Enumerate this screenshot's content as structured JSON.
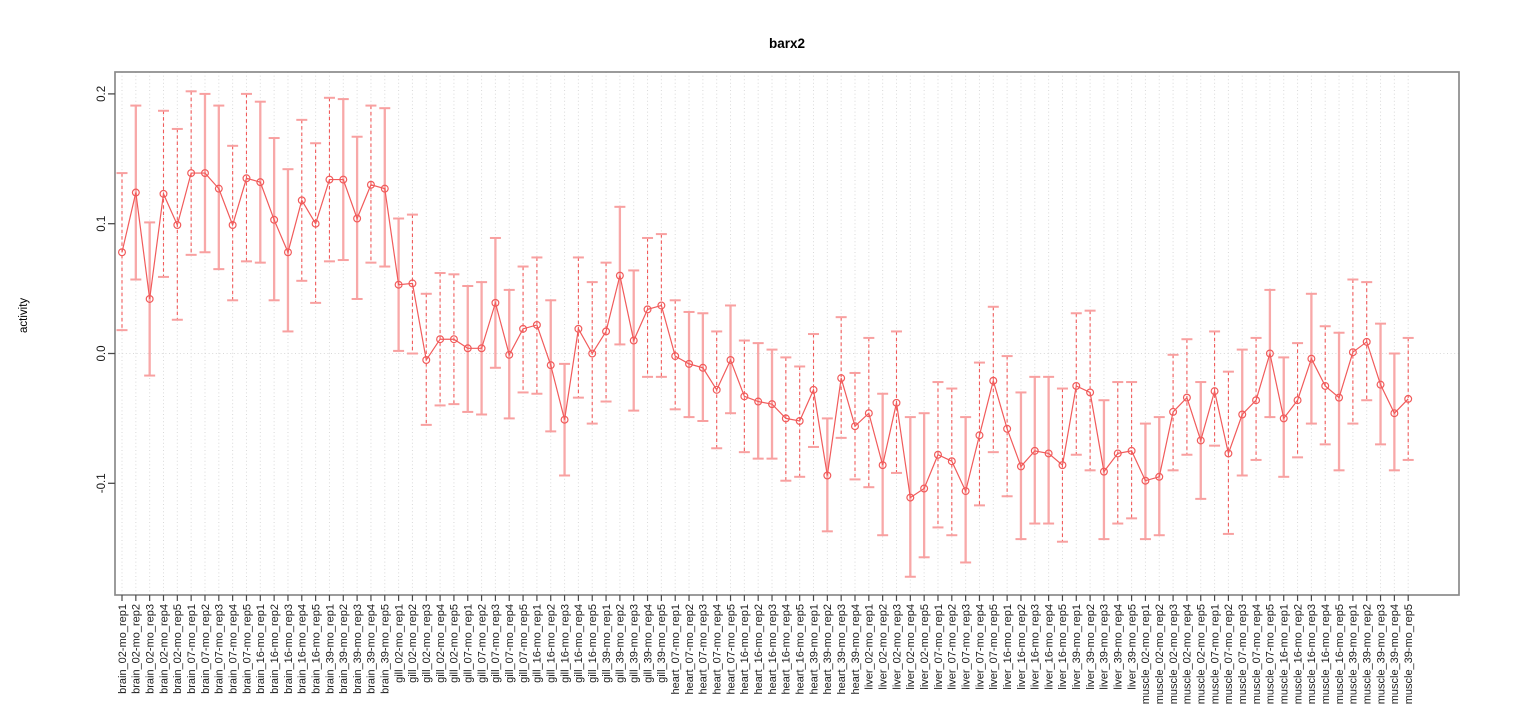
{
  "chart_data": {
    "type": "scatter",
    "title": "barx2",
    "ylabel": "activity",
    "xlabel": "",
    "yticks": [
      0.2,
      0.1,
      0.0,
      -0.1
    ],
    "ytick_labels": [
      "0.2",
      "0.1",
      "0.0",
      "-0.1"
    ],
    "ylim": [
      -0.186,
      0.217
    ],
    "legend": "none",
    "grid": {
      "vertical": "dotted line at every category",
      "horizontal": "dotted line at y=0"
    },
    "marker": "open-circle",
    "line_style": "solid segments connecting consecutive points, error bars per point",
    "colors": {
      "point": "#f15b5b",
      "line": "#f15b5b",
      "stem_dashed": "#f15b5b",
      "stem_light": "#f8a8a8",
      "cap": "#f8a0a0",
      "grid": "#d9d9d9",
      "frame": "#8a8a8a",
      "tick": "#4a4a4a",
      "text": "#1a1a1a"
    },
    "points": [
      {
        "label": "brain_02-mo_rep1",
        "value": 0.078,
        "lo": 0.018,
        "hi": 0.139,
        "style": "dashed"
      },
      {
        "label": "brain_02-mo_rep2",
        "value": 0.124,
        "lo": 0.057,
        "hi": 0.191,
        "style": "light"
      },
      {
        "label": "brain_02-mo_rep3",
        "value": 0.042,
        "lo": -0.017,
        "hi": 0.101,
        "style": "light"
      },
      {
        "label": "brain_02-mo_rep4",
        "value": 0.123,
        "lo": 0.059,
        "hi": 0.187,
        "style": "dashed"
      },
      {
        "label": "brain_02-mo_rep5",
        "value": 0.099,
        "lo": 0.026,
        "hi": 0.173,
        "style": "dashed"
      },
      {
        "label": "brain_07-mo_rep1",
        "value": 0.139,
        "lo": 0.076,
        "hi": 0.202,
        "style": "dashed"
      },
      {
        "label": "brain_07-mo_rep2",
        "value": 0.139,
        "lo": 0.078,
        "hi": 0.2,
        "style": "light"
      },
      {
        "label": "brain_07-mo_rep3",
        "value": 0.127,
        "lo": 0.065,
        "hi": 0.191,
        "style": "light"
      },
      {
        "label": "brain_07-mo_rep4",
        "value": 0.099,
        "lo": 0.041,
        "hi": 0.16,
        "style": "dashed"
      },
      {
        "label": "brain_07-mo_rep5",
        "value": 0.135,
        "lo": 0.071,
        "hi": 0.2,
        "style": "dashed"
      },
      {
        "label": "brain_16-mo_rep1",
        "value": 0.132,
        "lo": 0.07,
        "hi": 0.194,
        "style": "light"
      },
      {
        "label": "brain_16-mo_rep2",
        "value": 0.103,
        "lo": 0.041,
        "hi": 0.166,
        "style": "light"
      },
      {
        "label": "brain_16-mo_rep3",
        "value": 0.078,
        "lo": 0.017,
        "hi": 0.142,
        "style": "light"
      },
      {
        "label": "brain_16-mo_rep4",
        "value": 0.118,
        "lo": 0.056,
        "hi": 0.18,
        "style": "dashed"
      },
      {
        "label": "brain_16-mo_rep5",
        "value": 0.1,
        "lo": 0.039,
        "hi": 0.162,
        "style": "dashed"
      },
      {
        "label": "brain_39-mo_rep1",
        "value": 0.134,
        "lo": 0.071,
        "hi": 0.197,
        "style": "dashed"
      },
      {
        "label": "brain_39-mo_rep2",
        "value": 0.134,
        "lo": 0.072,
        "hi": 0.196,
        "style": "light"
      },
      {
        "label": "brain_39-mo_rep3",
        "value": 0.104,
        "lo": 0.042,
        "hi": 0.167,
        "style": "light"
      },
      {
        "label": "brain_39-mo_rep4",
        "value": 0.13,
        "lo": 0.07,
        "hi": 0.191,
        "style": "dashed"
      },
      {
        "label": "brain_39-mo_rep5",
        "value": 0.127,
        "lo": 0.067,
        "hi": 0.189,
        "style": "light"
      },
      {
        "label": "gill_02-mo_rep1",
        "value": 0.053,
        "lo": 0.002,
        "hi": 0.104,
        "style": "light"
      },
      {
        "label": "gill_02-mo_rep2",
        "value": 0.054,
        "lo": 0.0,
        "hi": 0.107,
        "style": "dashed"
      },
      {
        "label": "gill_02-mo_rep3",
        "value": -0.005,
        "lo": -0.055,
        "hi": 0.046,
        "style": "dashed"
      },
      {
        "label": "gill_02-mo_rep4",
        "value": 0.011,
        "lo": -0.04,
        "hi": 0.062,
        "style": "dashed"
      },
      {
        "label": "gill_02-mo_rep5",
        "value": 0.011,
        "lo": -0.039,
        "hi": 0.061,
        "style": "dashed"
      },
      {
        "label": "gill_07-mo_rep1",
        "value": 0.004,
        "lo": -0.045,
        "hi": 0.052,
        "style": "light"
      },
      {
        "label": "gill_07-mo_rep2",
        "value": 0.004,
        "lo": -0.047,
        "hi": 0.055,
        "style": "light"
      },
      {
        "label": "gill_07-mo_rep3",
        "value": 0.039,
        "lo": -0.011,
        "hi": 0.089,
        "style": "light"
      },
      {
        "label": "gill_07-mo_rep4",
        "value": -0.001,
        "lo": -0.05,
        "hi": 0.049,
        "style": "light"
      },
      {
        "label": "gill_07-mo_rep5",
        "value": 0.019,
        "lo": -0.03,
        "hi": 0.067,
        "style": "dashed"
      },
      {
        "label": "gill_16-mo_rep1",
        "value": 0.022,
        "lo": -0.031,
        "hi": 0.074,
        "style": "dashed"
      },
      {
        "label": "gill_16-mo_rep2",
        "value": -0.009,
        "lo": -0.06,
        "hi": 0.041,
        "style": "light"
      },
      {
        "label": "gill_16-mo_rep3",
        "value": -0.051,
        "lo": -0.094,
        "hi": -0.008,
        "style": "light"
      },
      {
        "label": "gill_16-mo_rep4",
        "value": 0.019,
        "lo": -0.034,
        "hi": 0.074,
        "style": "dashed"
      },
      {
        "label": "gill_16-mo_rep5",
        "value": 0.0,
        "lo": -0.054,
        "hi": 0.055,
        "style": "dashed"
      },
      {
        "label": "gill_39-mo_rep1",
        "value": 0.017,
        "lo": -0.037,
        "hi": 0.07,
        "style": "dashed"
      },
      {
        "label": "gill_39-mo_rep2",
        "value": 0.06,
        "lo": 0.007,
        "hi": 0.113,
        "style": "light"
      },
      {
        "label": "gill_39-mo_rep3",
        "value": 0.01,
        "lo": -0.044,
        "hi": 0.064,
        "style": "light"
      },
      {
        "label": "gill_39-mo_rep4",
        "value": 0.034,
        "lo": -0.018,
        "hi": 0.089,
        "style": "dashed"
      },
      {
        "label": "gill_39-mo_rep5",
        "value": 0.037,
        "lo": -0.018,
        "hi": 0.092,
        "style": "dashed"
      },
      {
        "label": "heart_07-mo_rep1",
        "value": -0.002,
        "lo": -0.043,
        "hi": 0.041,
        "style": "dashed"
      },
      {
        "label": "heart_07-mo_rep2",
        "value": -0.008,
        "lo": -0.049,
        "hi": 0.032,
        "style": "light"
      },
      {
        "label": "heart_07-mo_rep3",
        "value": -0.011,
        "lo": -0.052,
        "hi": 0.031,
        "style": "light"
      },
      {
        "label": "heart_07-mo_rep4",
        "value": -0.028,
        "lo": -0.073,
        "hi": 0.017,
        "style": "dashed"
      },
      {
        "label": "heart_07-mo_rep5",
        "value": -0.005,
        "lo": -0.046,
        "hi": 0.037,
        "style": "light"
      },
      {
        "label": "heart_16-mo_rep1",
        "value": -0.033,
        "lo": -0.076,
        "hi": 0.01,
        "style": "dashed"
      },
      {
        "label": "heart_16-mo_rep2",
        "value": -0.037,
        "lo": -0.081,
        "hi": 0.008,
        "style": "light"
      },
      {
        "label": "heart_16-mo_rep3",
        "value": -0.039,
        "lo": -0.081,
        "hi": 0.003,
        "style": "light"
      },
      {
        "label": "heart_16-mo_rep4",
        "value": -0.05,
        "lo": -0.098,
        "hi": -0.003,
        "style": "dashed"
      },
      {
        "label": "heart_16-mo_rep5",
        "value": -0.052,
        "lo": -0.095,
        "hi": -0.01,
        "style": "dashed"
      },
      {
        "label": "heart_39-mo_rep1",
        "value": -0.028,
        "lo": -0.072,
        "hi": 0.015,
        "style": "dashed"
      },
      {
        "label": "heart_39-mo_rep2",
        "value": -0.094,
        "lo": -0.137,
        "hi": -0.05,
        "style": "light"
      },
      {
        "label": "heart_39-mo_rep3",
        "value": -0.019,
        "lo": -0.065,
        "hi": 0.028,
        "style": "dashed"
      },
      {
        "label": "heart_39-mo_rep4",
        "value": -0.056,
        "lo": -0.097,
        "hi": -0.015,
        "style": "dashed"
      },
      {
        "label": "liver_02-mo_rep1",
        "value": -0.046,
        "lo": -0.103,
        "hi": 0.012,
        "style": "dashed"
      },
      {
        "label": "liver_02-mo_rep2",
        "value": -0.086,
        "lo": -0.14,
        "hi": -0.031,
        "style": "light"
      },
      {
        "label": "liver_02-mo_rep3",
        "value": -0.038,
        "lo": -0.092,
        "hi": 0.017,
        "style": "dashed"
      },
      {
        "label": "liver_02-mo_rep4",
        "value": -0.111,
        "lo": -0.172,
        "hi": -0.049,
        "style": "light"
      },
      {
        "label": "liver_02-mo_rep5",
        "value": -0.104,
        "lo": -0.157,
        "hi": -0.046,
        "style": "light"
      },
      {
        "label": "liver_07-mo_rep1",
        "value": -0.078,
        "lo": -0.134,
        "hi": -0.022,
        "style": "dashed"
      },
      {
        "label": "liver_07-mo_rep2",
        "value": -0.083,
        "lo": -0.14,
        "hi": -0.027,
        "style": "dashed"
      },
      {
        "label": "liver_07-mo_rep3",
        "value": -0.106,
        "lo": -0.161,
        "hi": -0.049,
        "style": "light"
      },
      {
        "label": "liver_07-mo_rep4",
        "value": -0.063,
        "lo": -0.117,
        "hi": -0.007,
        "style": "dashed"
      },
      {
        "label": "liver_07-mo_rep5",
        "value": -0.021,
        "lo": -0.076,
        "hi": 0.036,
        "style": "dashed"
      },
      {
        "label": "liver_16-mo_rep1",
        "value": -0.058,
        "lo": -0.11,
        "hi": -0.002,
        "style": "dashed"
      },
      {
        "label": "liver_16-mo_rep2",
        "value": -0.087,
        "lo": -0.143,
        "hi": -0.03,
        "style": "light"
      },
      {
        "label": "liver_16-mo_rep3",
        "value": -0.075,
        "lo": -0.131,
        "hi": -0.018,
        "style": "light"
      },
      {
        "label": "liver_16-mo_rep4",
        "value": -0.077,
        "lo": -0.131,
        "hi": -0.018,
        "style": "light"
      },
      {
        "label": "liver_16-mo_rep5",
        "value": -0.086,
        "lo": -0.145,
        "hi": -0.027,
        "style": "dashed"
      },
      {
        "label": "liver_39-mo_rep1",
        "value": -0.025,
        "lo": -0.078,
        "hi": 0.031,
        "style": "dashed"
      },
      {
        "label": "liver_39-mo_rep2",
        "value": -0.03,
        "lo": -0.09,
        "hi": 0.033,
        "style": "dashed"
      },
      {
        "label": "liver_39-mo_rep3",
        "value": -0.091,
        "lo": -0.143,
        "hi": -0.036,
        "style": "light"
      },
      {
        "label": "liver_39-mo_rep4",
        "value": -0.077,
        "lo": -0.131,
        "hi": -0.022,
        "style": "dashed"
      },
      {
        "label": "liver_39-mo_rep5",
        "value": -0.075,
        "lo": -0.127,
        "hi": -0.022,
        "style": "dashed"
      },
      {
        "label": "muscle_02-mo_rep1",
        "value": -0.098,
        "lo": -0.143,
        "hi": -0.054,
        "style": "light"
      },
      {
        "label": "muscle_02-mo_rep2",
        "value": -0.095,
        "lo": -0.14,
        "hi": -0.049,
        "style": "light"
      },
      {
        "label": "muscle_02-mo_rep3",
        "value": -0.045,
        "lo": -0.09,
        "hi": -0.001,
        "style": "dashed"
      },
      {
        "label": "muscle_02-mo_rep4",
        "value": -0.034,
        "lo": -0.078,
        "hi": 0.011,
        "style": "dashed"
      },
      {
        "label": "muscle_02-mo_rep5",
        "value": -0.067,
        "lo": -0.112,
        "hi": -0.022,
        "style": "light"
      },
      {
        "label": "muscle_07-mo_rep1",
        "value": -0.029,
        "lo": -0.071,
        "hi": 0.017,
        "style": "dashed"
      },
      {
        "label": "muscle_07-mo_rep2",
        "value": -0.077,
        "lo": -0.139,
        "hi": -0.014,
        "style": "dashed"
      },
      {
        "label": "muscle_07-mo_rep3",
        "value": -0.047,
        "lo": -0.094,
        "hi": 0.003,
        "style": "light"
      },
      {
        "label": "muscle_07-mo_rep4",
        "value": -0.036,
        "lo": -0.082,
        "hi": 0.012,
        "style": "dashed"
      },
      {
        "label": "muscle_07-mo_rep5",
        "value": 0.0,
        "lo": -0.049,
        "hi": 0.049,
        "style": "light"
      },
      {
        "label": "muscle_16-mo_rep1",
        "value": -0.05,
        "lo": -0.095,
        "hi": -0.003,
        "style": "light"
      },
      {
        "label": "muscle_16-mo_rep2",
        "value": -0.036,
        "lo": -0.08,
        "hi": 0.008,
        "style": "dashed"
      },
      {
        "label": "muscle_16-mo_rep3",
        "value": -0.004,
        "lo": -0.054,
        "hi": 0.046,
        "style": "light"
      },
      {
        "label": "muscle_16-mo_rep4",
        "value": -0.025,
        "lo": -0.07,
        "hi": 0.021,
        "style": "dashed"
      },
      {
        "label": "muscle_16-mo_rep5",
        "value": -0.034,
        "lo": -0.09,
        "hi": 0.016,
        "style": "light"
      },
      {
        "label": "muscle_39-mo_rep1",
        "value": 0.001,
        "lo": -0.054,
        "hi": 0.057,
        "style": "dashed"
      },
      {
        "label": "muscle_39-mo_rep2",
        "value": 0.009,
        "lo": -0.036,
        "hi": 0.055,
        "style": "dashed"
      },
      {
        "label": "muscle_39-mo_rep3",
        "value": -0.024,
        "lo": -0.07,
        "hi": 0.023,
        "style": "light"
      },
      {
        "label": "muscle_39-mo_rep4",
        "value": -0.046,
        "lo": -0.09,
        "hi": 0.0,
        "style": "light"
      },
      {
        "label": "muscle_39-mo_rep5",
        "value": -0.035,
        "lo": -0.082,
        "hi": 0.012,
        "style": "dashed"
      }
    ]
  }
}
